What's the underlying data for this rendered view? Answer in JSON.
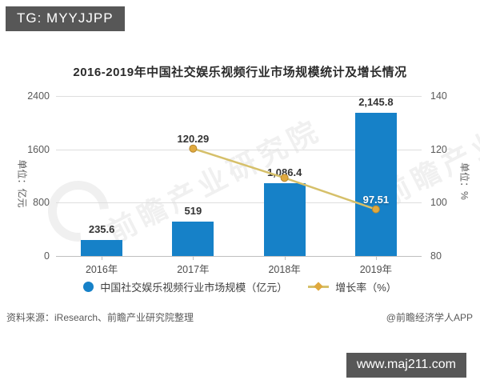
{
  "header": {
    "tag_label": "TG: MYYJJPP"
  },
  "footer_badge": {
    "url": "www.maj211.com"
  },
  "source": {
    "left": "资料来源：iResearch、前瞻产业研究院整理",
    "right": "@前瞻经济学人APP"
  },
  "colors": {
    "bar_blue": "#1681c8",
    "line_gold": "#d6c06a",
    "marker_gold": "#e0a93e",
    "marker_stroke": "#b8892f",
    "badge_bg": "#575757"
  },
  "chart_data": {
    "type": "bar+line",
    "title": "2016-2019年中国社交娱乐视频行业市场规模统计及增长情况",
    "categories": [
      "2016年",
      "2017年",
      "2018年",
      "2019年"
    ],
    "series": [
      {
        "name": "中国社交娱乐视频行业市场规模（亿元）",
        "type": "bar",
        "axis": "left",
        "values": [
          235.6,
          519,
          1086.4,
          2145.8
        ],
        "labels": [
          "235.6",
          "519",
          "1,086.4",
          "2,145.8"
        ]
      },
      {
        "name": "增长率（%）",
        "type": "line",
        "axis": "right",
        "values": [
          null,
          120.29,
          109.3,
          97.51
        ],
        "labels": [
          "",
          "120.29",
          "",
          "97.51"
        ],
        "label_styles": [
          "",
          "dark",
          "",
          "light"
        ]
      }
    ],
    "left_axis": {
      "label": "单位：亿元",
      "min": 0,
      "max": 2400,
      "ticks": [
        0,
        800,
        1600,
        2400
      ]
    },
    "right_axis": {
      "label": "单位：%",
      "min": 80,
      "max": 140,
      "ticks": [
        80,
        100,
        120,
        140
      ]
    },
    "grid": true,
    "legend_position": "bottom",
    "watermark": {
      "text": "前瞻产业研究院"
    }
  }
}
